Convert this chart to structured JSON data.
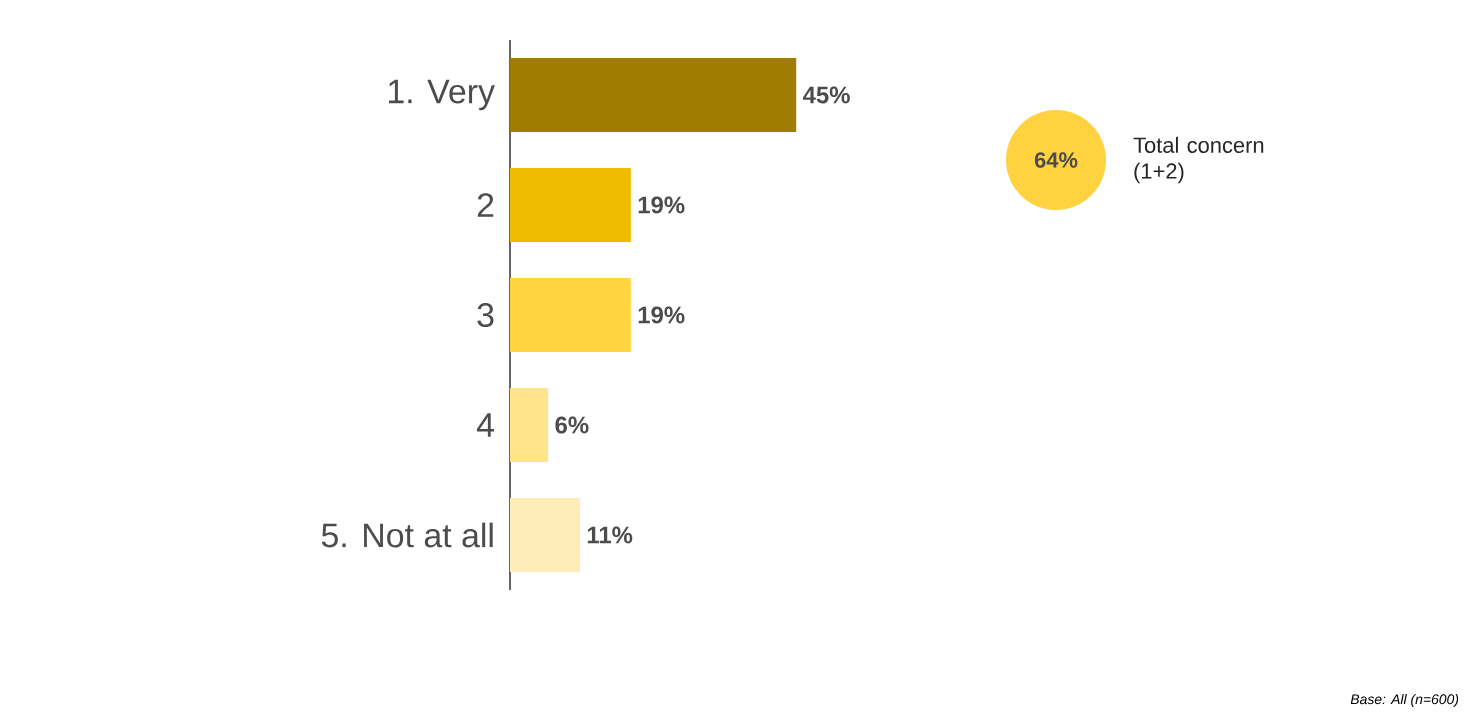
{
  "chart_data": {
    "type": "bar",
    "orientation": "horizontal",
    "categories": [
      "1. Very",
      "2",
      "3",
      "4",
      "5. Not at all"
    ],
    "values": [
      45,
      19,
      19,
      6,
      11
    ],
    "value_labels": [
      "45%",
      "19%",
      "19%",
      "6%",
      "11%"
    ],
    "colors": [
      "#a07c00",
      "#f0bc00",
      "#ffd43f",
      "#ffe48c",
      "#ffedb8"
    ],
    "annotations": [
      "64%",
      "Total concern (1+2)",
      "Base: All (n=600)"
    ]
  }
}
